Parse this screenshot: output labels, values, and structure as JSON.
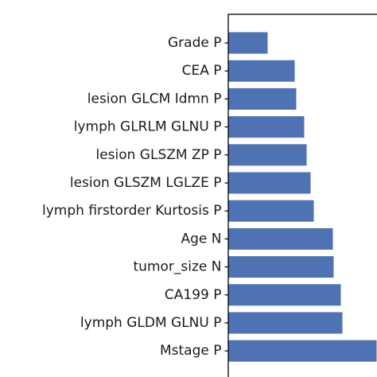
{
  "chart_data": {
    "type": "bar",
    "orientation": "horizontal",
    "title": "",
    "xlabel": "",
    "ylabel": "",
    "categories": [
      "Grade P",
      "CEA P",
      "lesion GLCM Idmn P",
      "lymph GLRLM GLNU P",
      "lesion GLSZM ZP P",
      "lesion GLSZM LGLZE P",
      "lymph firstorder Kurtosis P",
      "Age N",
      "tumor_size N",
      "CA199 P",
      "lymph GLDM GLNU P",
      "Mstage P"
    ],
    "values": [
      0.245,
      0.415,
      0.425,
      0.475,
      0.49,
      0.515,
      0.535,
      0.655,
      0.66,
      0.705,
      0.715,
      0.93
    ],
    "xlim": [
      0,
      1
    ],
    "bar_color": "#4f72b3",
    "grid": false,
    "legend": "none"
  }
}
